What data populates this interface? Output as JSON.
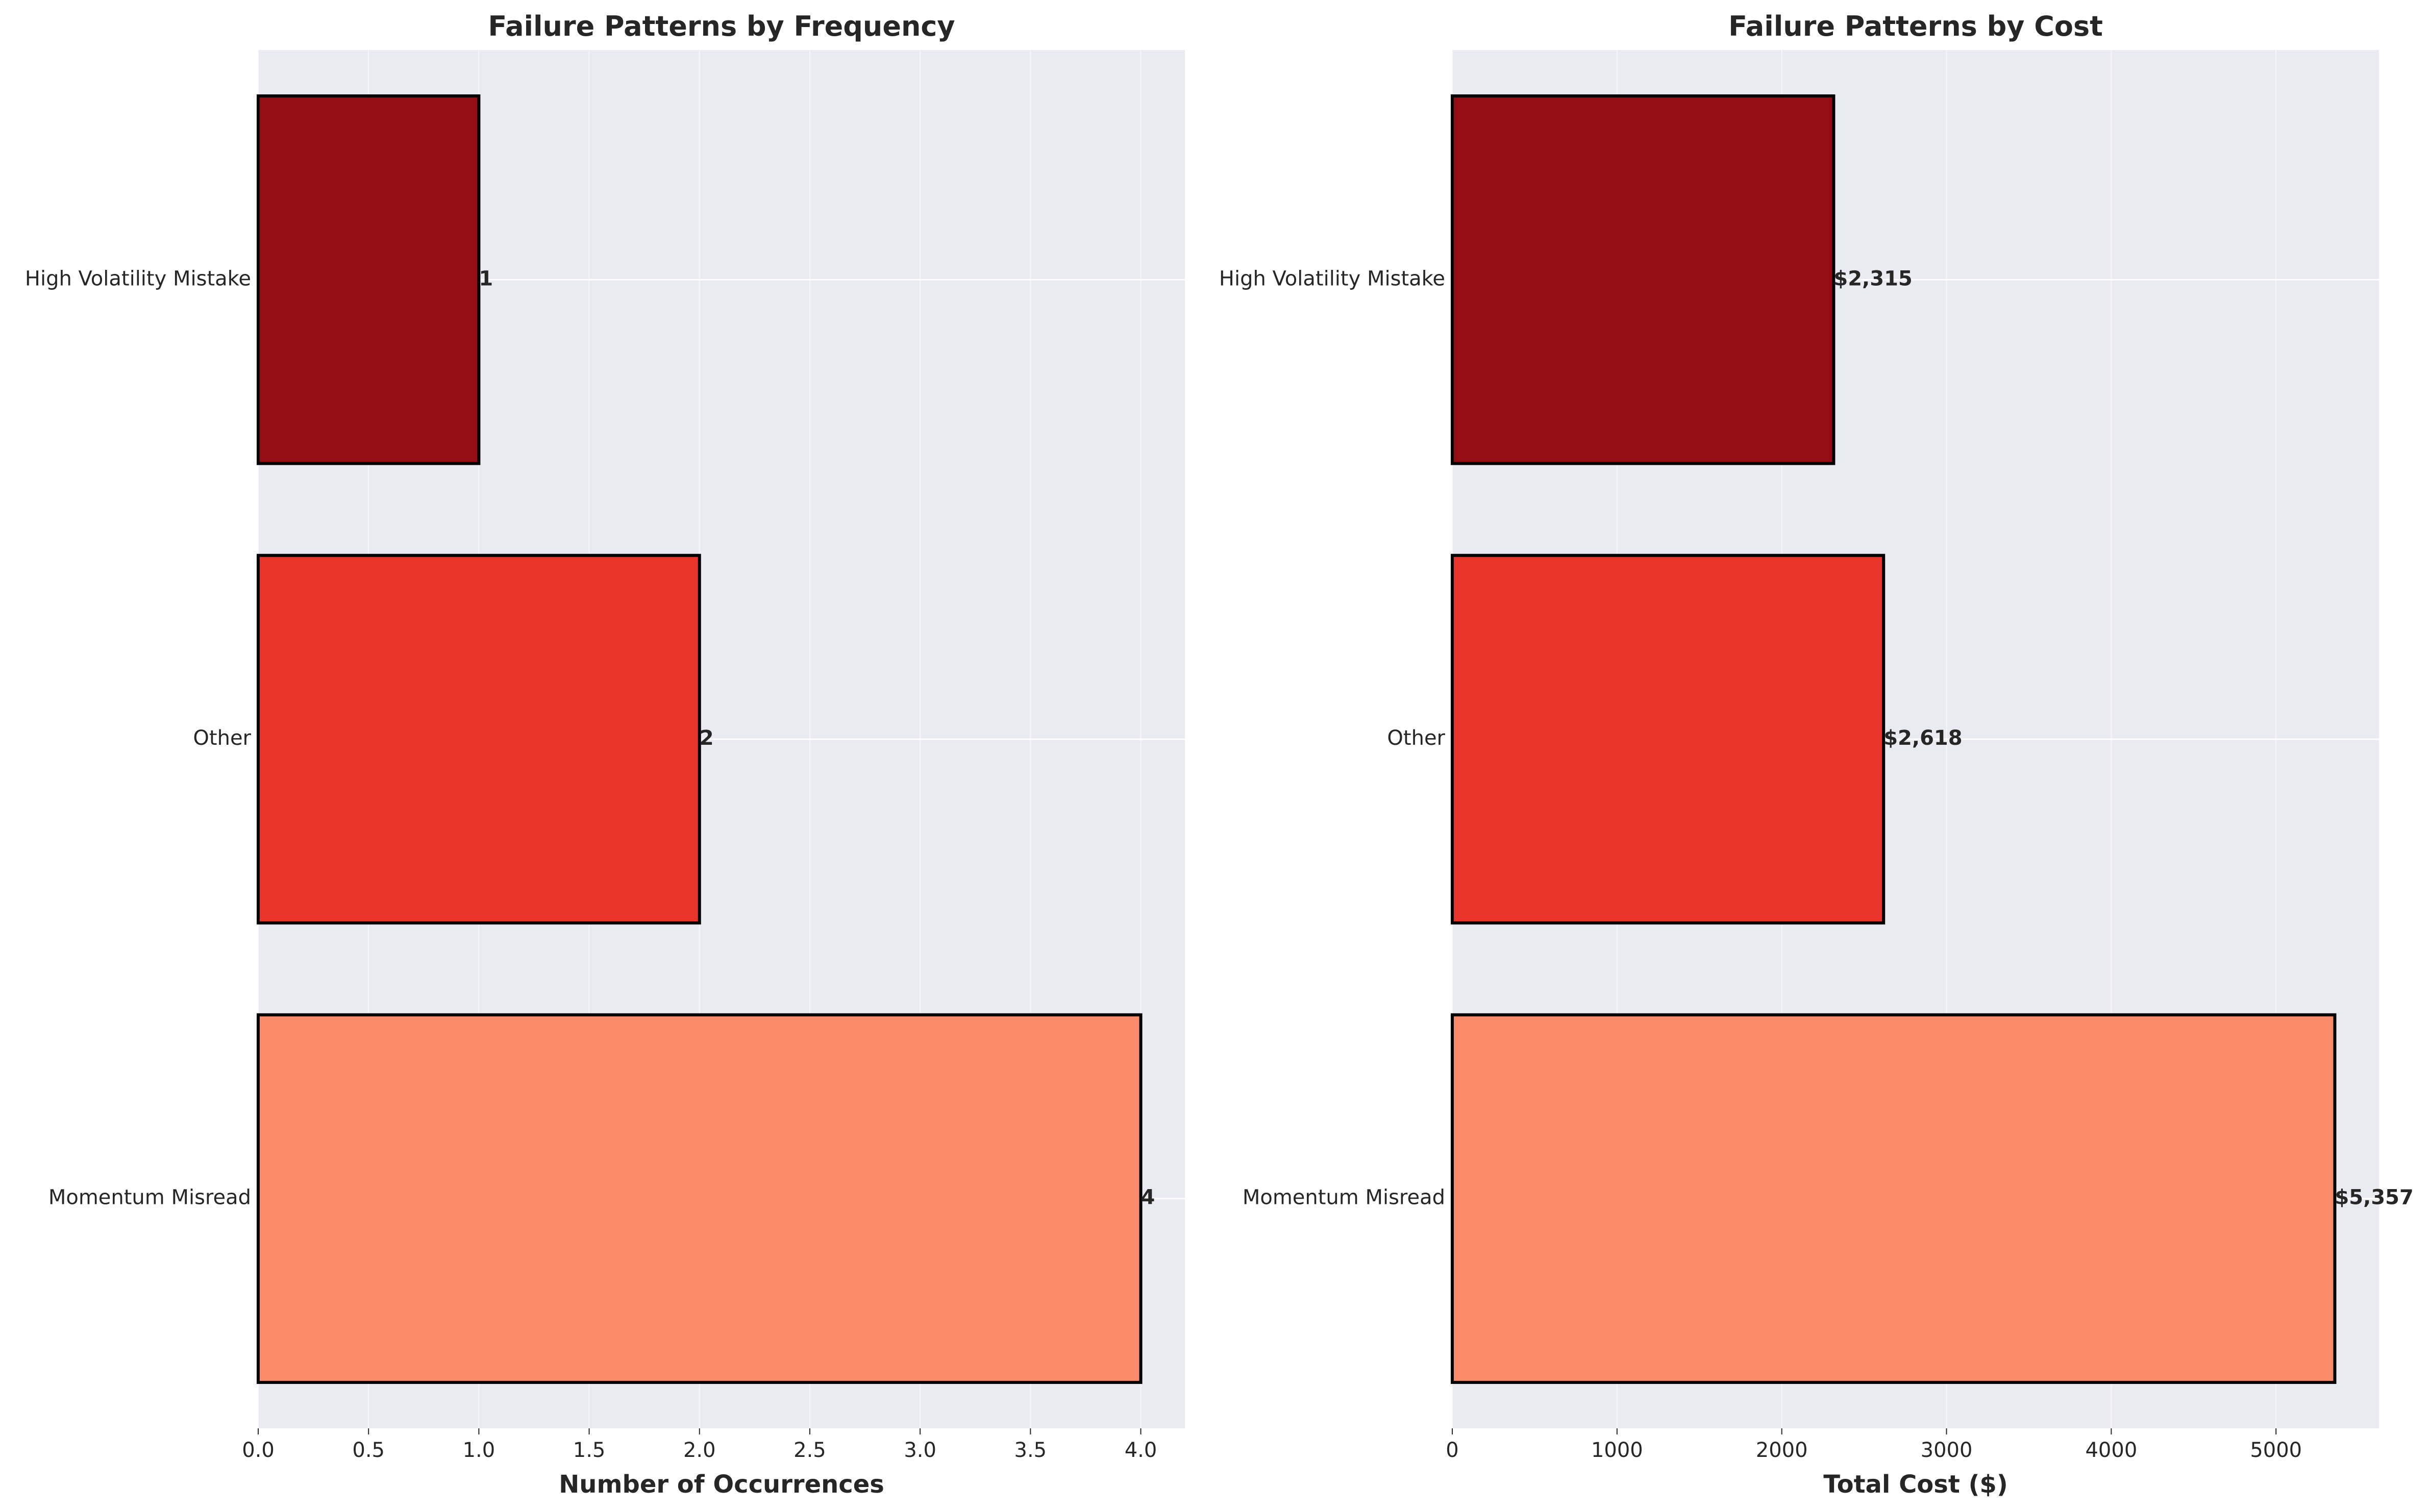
{
  "chart_data": [
    {
      "type": "bar",
      "orientation": "horizontal",
      "title": "Failure Patterns by Frequency",
      "xlabel": "Number of Occurrences",
      "ylabel": "",
      "categories": [
        "Momentum Misread",
        "Other",
        "High Volatility Mistake"
      ],
      "values": [
        4,
        2,
        1
      ],
      "data_labels": [
        "4",
        "2",
        "1"
      ],
      "xlim": [
        0,
        4.2
      ],
      "xticks": [
        0,
        0.5,
        1,
        1.5,
        2,
        2.5,
        3,
        3.5,
        4
      ],
      "xtick_labels": [
        "0.0",
        "0.5",
        "1.0",
        "1.5",
        "2.0",
        "2.5",
        "3.0",
        "3.5",
        "4.0"
      ],
      "colors": [
        "#fb8a6b",
        "#e8342a",
        "#960c14"
      ],
      "grid": true
    },
    {
      "type": "bar",
      "orientation": "horizontal",
      "title": "Failure Patterns by Cost",
      "xlabel": "Total Cost ($)",
      "ylabel": "",
      "categories": [
        "Momentum Misread",
        "Other",
        "High Volatility Mistake"
      ],
      "values": [
        5357,
        2618,
        2315
      ],
      "data_labels": [
        "$5,357",
        "$2,618",
        "$2,315"
      ],
      "xlim": [
        0,
        5625
      ],
      "xticks": [
        0,
        1000,
        2000,
        3000,
        4000,
        5000
      ],
      "xtick_labels": [
        "0",
        "1000",
        "2000",
        "3000",
        "4000",
        "5000"
      ],
      "colors": [
        "#fb8a6b",
        "#e8342a",
        "#960c14"
      ],
      "grid": true
    }
  ]
}
